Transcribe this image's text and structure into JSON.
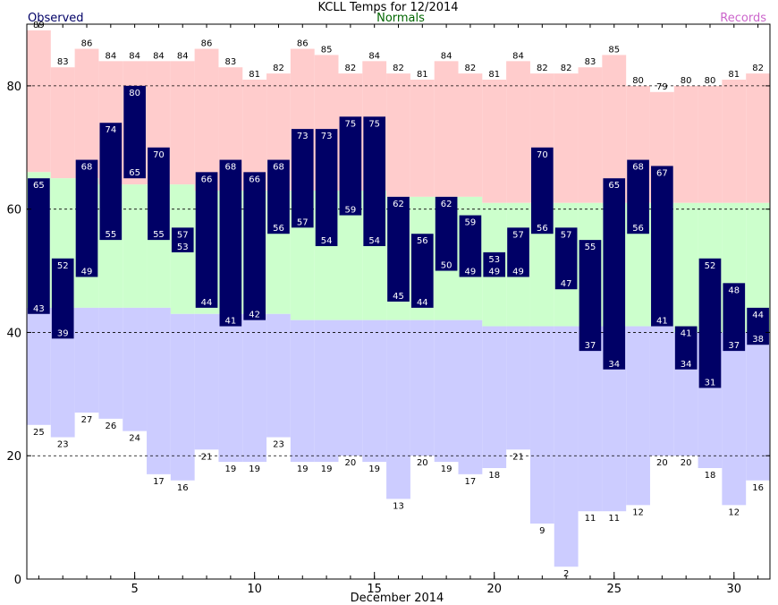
{
  "chart_data": {
    "type": "bar",
    "title": "KCLL Temps for 12/2014",
    "xlabel": "December 2014",
    "ylabel": "",
    "legend": {
      "observed": "Observed",
      "normals": "Normals",
      "records": "Records"
    },
    "xlim": [
      0.5,
      31.5
    ],
    "ylim": [
      0,
      90
    ],
    "x_ticks": [
      5,
      10,
      15,
      20,
      25,
      30
    ],
    "y_ticks": [
      0,
      20,
      40,
      60,
      80
    ],
    "grid_dashed_y": [
      20,
      40,
      60,
      80
    ],
    "colors": {
      "observed": "#000066",
      "normals": "#ccffcc",
      "records": "#ffcccc",
      "records_low": "#ccccff",
      "observed_label": "#000066",
      "normals_label": "#006600",
      "records_label": "#cc66cc"
    },
    "days": [
      1,
      2,
      3,
      4,
      5,
      6,
      7,
      8,
      9,
      10,
      11,
      12,
      13,
      14,
      15,
      16,
      17,
      18,
      19,
      20,
      21,
      22,
      23,
      24,
      25,
      26,
      27,
      28,
      29,
      30,
      31
    ],
    "observed_high": [
      65,
      52,
      68,
      74,
      80,
      70,
      57,
      66,
      68,
      66,
      68,
      73,
      73,
      75,
      75,
      62,
      56,
      62,
      59,
      53,
      57,
      70,
      57,
      55,
      65,
      68,
      67,
      41,
      52,
      48,
      44
    ],
    "observed_low": [
      43,
      39,
      49,
      55,
      65,
      55,
      53,
      44,
      41,
      42,
      56,
      57,
      54,
      59,
      54,
      45,
      44,
      50,
      49,
      49,
      49,
      56,
      47,
      37,
      34,
      56,
      41,
      34,
      31,
      37,
      38
    ],
    "normal_high": [
      66,
      65,
      65,
      64,
      64,
      64,
      64,
      63,
      63,
      63,
      63,
      63,
      63,
      63,
      63,
      62,
      62,
      62,
      62,
      61,
      61,
      61,
      61,
      61,
      61,
      61,
      61,
      61,
      61,
      61,
      61
    ],
    "normal_low": [
      44,
      44,
      44,
      44,
      44,
      44,
      43,
      43,
      43,
      43,
      43,
      42,
      42,
      42,
      42,
      42,
      42,
      42,
      42,
      41,
      41,
      41,
      41,
      41,
      41,
      41,
      41,
      40,
      40,
      40,
      40
    ],
    "record_high": [
      89,
      83,
      86,
      84,
      84,
      84,
      84,
      86,
      83,
      81,
      82,
      86,
      85,
      82,
      84,
      82,
      81,
      84,
      82,
      81,
      84,
      82,
      82,
      83,
      85,
      80,
      79,
      80,
      80,
      81,
      82
    ],
    "record_low": [
      25,
      23,
      27,
      26,
      24,
      17,
      16,
      21,
      19,
      19,
      23,
      19,
      19,
      20,
      19,
      13,
      20,
      19,
      17,
      18,
      21,
      9,
      2,
      11,
      11,
      12,
      20,
      20,
      18,
      12,
      16
    ]
  }
}
